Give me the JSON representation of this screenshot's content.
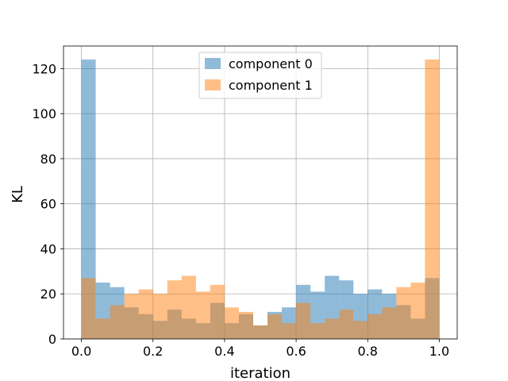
{
  "chart_data": {
    "type": "bar",
    "xlabel": "iteration",
    "ylabel": "KL",
    "xlim": [
      -0.05,
      1.05
    ],
    "ylim": [
      0,
      130
    ],
    "x_ticks": [
      0.0,
      0.2,
      0.4,
      0.6,
      0.8,
      1.0
    ],
    "x_tick_labels": [
      "0.0",
      "0.2",
      "0.4",
      "0.6",
      "0.8",
      "1.0"
    ],
    "y_ticks": [
      0,
      20,
      40,
      60,
      80,
      100,
      120
    ],
    "y_tick_labels": [
      "0",
      "20",
      "40",
      "60",
      "80",
      "100",
      "120"
    ],
    "grid": true,
    "legend_position": "top-center",
    "bin_edges": [
      0.0,
      0.04,
      0.08,
      0.12,
      0.16,
      0.2,
      0.24,
      0.28,
      0.32,
      0.36,
      0.4,
      0.44,
      0.48,
      0.52,
      0.56,
      0.6,
      0.64,
      0.68,
      0.72,
      0.76,
      0.8,
      0.84,
      0.88,
      0.92,
      0.96,
      1.0
    ],
    "series": [
      {
        "name": "component 0",
        "color": "#1f77b4",
        "alpha": 0.5,
        "values": [
          124,
          25,
          23,
          14,
          11,
          8,
          13,
          9,
          7,
          16,
          7,
          11,
          6,
          12,
          14,
          24,
          21,
          28,
          26,
          20,
          22,
          20,
          15,
          9,
          27
        ]
      },
      {
        "name": "component 1",
        "color": "#ff7f0e",
        "alpha": 0.5,
        "values": [
          27,
          9,
          15,
          20,
          22,
          20,
          26,
          28,
          21,
          24,
          14,
          12,
          6,
          11,
          7,
          16,
          7,
          9,
          13,
          8,
          11,
          14,
          23,
          25,
          124
        ]
      }
    ]
  }
}
